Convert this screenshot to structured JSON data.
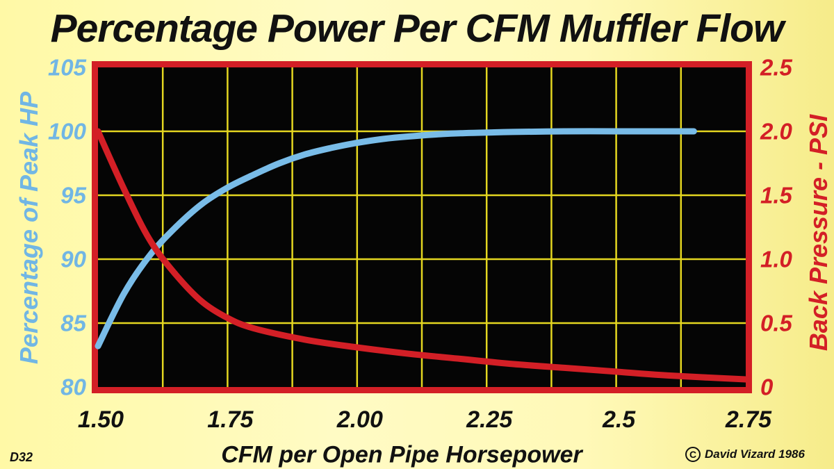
{
  "chart_data": {
    "type": "line",
    "title": "Percentage Power Per CFM Muffler Flow",
    "xlabel": "CFM per Open Pipe Horsepower",
    "ylabel_left": "Percentage of Peak HP",
    "ylabel_right": "Back Pressure - PSI",
    "x_ticks": [
      "1.50",
      "1.75",
      "2.00",
      "2.25",
      "2.5",
      "2.75"
    ],
    "y_left_ticks": [
      "80",
      "85",
      "90",
      "95",
      "100",
      "105"
    ],
    "y_right_ticks": [
      "0",
      "0.5",
      "1.0",
      "1.5",
      "2.0",
      "2.5"
    ],
    "xlim": [
      1.5,
      2.75
    ],
    "ylim_left": [
      80,
      105
    ],
    "ylim_right": [
      0,
      2.5
    ],
    "grid": true,
    "series": [
      {
        "axis": "left",
        "color": "#79bce8",
        "x": [
          1.5,
          1.55,
          1.6,
          1.65,
          1.7,
          1.75,
          1.8,
          1.85,
          1.9,
          1.95,
          2.0,
          2.05,
          2.1,
          2.15,
          2.2,
          2.25,
          2.3,
          2.4,
          2.5,
          2.6,
          2.65
        ],
        "y": [
          83.2,
          87.3,
          90.3,
          92.5,
          94.3,
          95.6,
          96.6,
          97.5,
          98.2,
          98.7,
          99.1,
          99.4,
          99.6,
          99.75,
          99.85,
          99.9,
          99.95,
          100.0,
          100.0,
          100.0,
          100.0
        ]
      },
      {
        "axis": "right",
        "color": "#d31f26",
        "x": [
          1.5,
          1.55,
          1.6,
          1.65,
          1.7,
          1.75,
          1.8,
          1.9,
          2.0,
          2.1,
          2.2,
          2.3,
          2.4,
          2.5,
          2.6,
          2.75
        ],
        "y": [
          2.0,
          1.55,
          1.15,
          0.88,
          0.67,
          0.54,
          0.46,
          0.37,
          0.31,
          0.26,
          0.22,
          0.18,
          0.15,
          0.12,
          0.09,
          0.06
        ]
      }
    ]
  },
  "figure_code": "D32",
  "credit": "David Vizard 1986",
  "colors": {
    "plot_bg": "#050505",
    "frame": "#d31f26",
    "grid": "#e4d620",
    "left_axis": "#71b6e4",
    "right_axis": "#d31f26"
  }
}
